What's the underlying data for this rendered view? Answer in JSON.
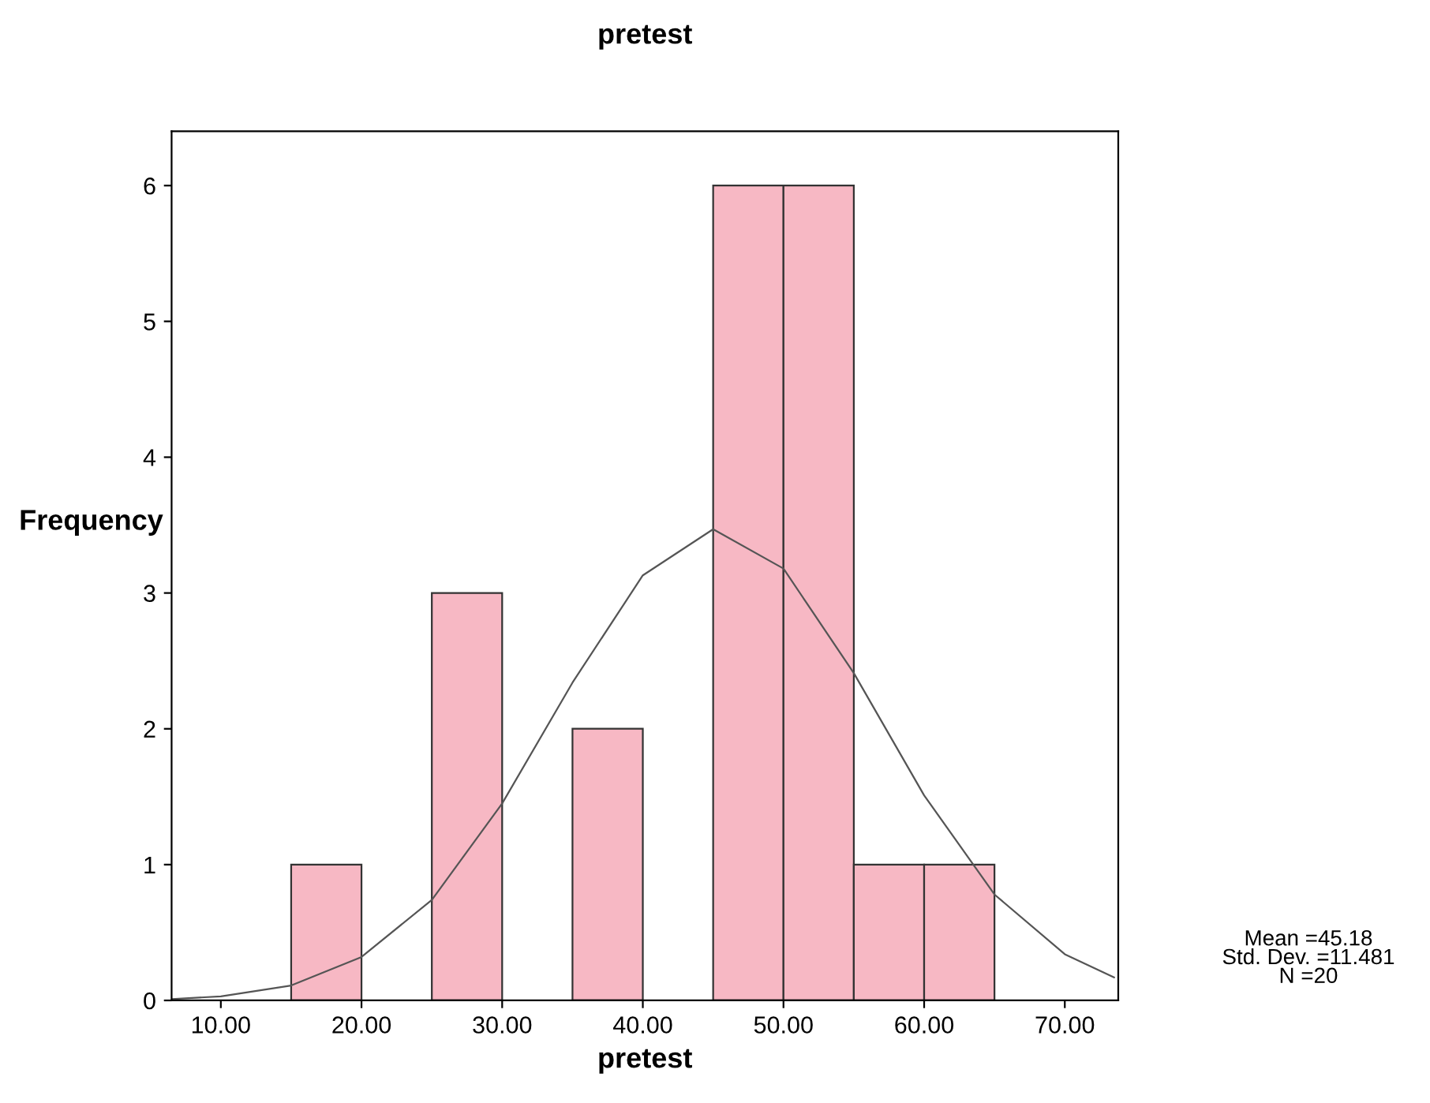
{
  "chart_data": {
    "type": "histogram",
    "title": "pretest",
    "xlabel": "pretest",
    "ylabel": "Frequency",
    "bins": [
      15,
      20,
      25,
      30,
      35,
      40,
      45,
      50,
      55,
      60,
      65
    ],
    "values": [
      1,
      0,
      3,
      0,
      2,
      0,
      6,
      6,
      1,
      1
    ],
    "color": "#f7b8c4",
    "series": [
      {
        "type": "line",
        "color": "#555555",
        "x": [
          6.5,
          10,
          15,
          20,
          25,
          30,
          35,
          40,
          45,
          50,
          55,
          60,
          65,
          70,
          73.5
        ],
        "values": [
          0.01,
          0.03,
          0.11,
          0.32,
          0.74,
          1.45,
          2.34,
          3.13,
          3.47,
          3.18,
          2.41,
          1.51,
          0.78,
          0.34,
          0.17
        ]
      }
    ],
    "xlim": [
      6.5,
      73.8
    ],
    "xticks": [
      {
        "value": 10,
        "label": "10.00"
      },
      {
        "value": 20,
        "label": "20.00"
      },
      {
        "value": 30,
        "label": "30.00"
      },
      {
        "value": 40,
        "label": "40.00"
      },
      {
        "value": 50,
        "label": "50.00"
      },
      {
        "value": 60,
        "label": "60.00"
      },
      {
        "value": 70,
        "label": "70.00"
      }
    ],
    "ylim": [
      0,
      6.4
    ],
    "yticks": [
      0,
      1,
      2,
      3,
      4,
      5,
      6
    ],
    "grid": false,
    "legend": false,
    "annotations": [
      "Mean =45.18",
      "Std. Dev. =11.481",
      "N =20"
    ]
  }
}
